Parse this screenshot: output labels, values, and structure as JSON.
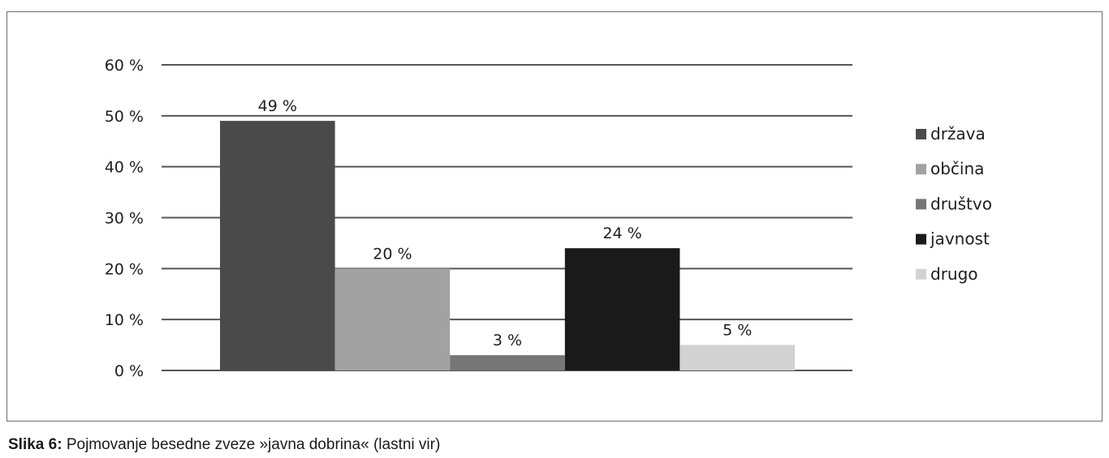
{
  "chart_data": {
    "type": "bar",
    "categories": [
      "država",
      "občina",
      "društvo",
      "javnost",
      "drugo"
    ],
    "values": [
      49,
      20,
      3,
      24,
      5
    ],
    "data_labels": [
      "49 %",
      "20 %",
      "3 %",
      "24 %",
      "5 %"
    ],
    "colors": [
      "#4a4a4a",
      "#a2a2a2",
      "#767676",
      "#1a1a1a",
      "#d2d2d2"
    ],
    "ylim": [
      0,
      60
    ],
    "yticks": [
      0,
      10,
      20,
      30,
      40,
      50,
      60
    ],
    "ytick_labels": [
      "0 %",
      "10 %",
      "20 %",
      "30 %",
      "40 %",
      "50 %",
      "60 %"
    ],
    "grid": true,
    "legend": {
      "position": "right",
      "entries": [
        "država",
        "občina",
        "društvo",
        "javnost",
        "drugo"
      ]
    },
    "title": "",
    "xlabel": "",
    "ylabel": ""
  },
  "caption": {
    "label": "Slika 6:",
    "text": "Pojmovanje besedne zveze »javna dobrina« (lastni vir)"
  }
}
